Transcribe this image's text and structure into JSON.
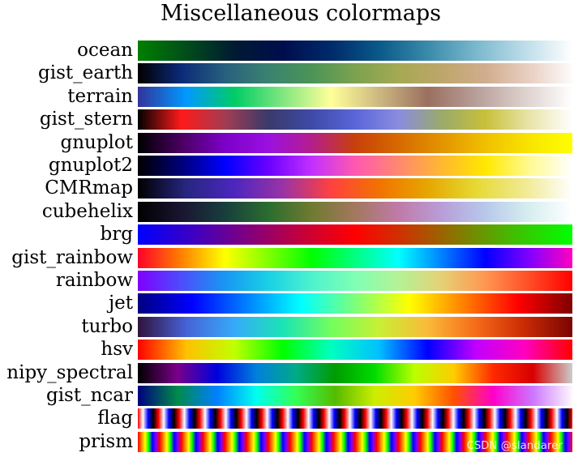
{
  "chart_data": {
    "type": "heatmap",
    "title": "Miscellaneous colormaps",
    "colormaps": [
      {
        "name": "ocean",
        "stops": [
          "#008000",
          "#004d1a",
          "#001a33",
          "#000d4d",
          "#002a6a",
          "#0a5a8a",
          "#3a8aaa",
          "#7ab8cc",
          "#bcdce8",
          "#ffffff"
        ]
      },
      {
        "name": "gist_earth",
        "stops": [
          "#000000",
          "#0b2a78",
          "#27607e",
          "#3a8270",
          "#4b9457",
          "#7ca24f",
          "#a5a953",
          "#bea66a",
          "#d1ad8e",
          "#e8cfc2",
          "#fdfbfb"
        ]
      },
      {
        "name": "terrain",
        "stops": [
          "#333399",
          "#0099ff",
          "#00cc66",
          "#80e680",
          "#ffff99",
          "#ccb880",
          "#9a7060",
          "#b89e98",
          "#dcd0cc",
          "#ffffff"
        ]
      },
      {
        "name": "gist_stern",
        "stops": [
          "#000000",
          "#ff1a1a",
          "#a33c52",
          "#3a3a6a",
          "#3e4aa8",
          "#5a66d8",
          "#8a8ce0",
          "#9aaa6a",
          "#c8c03a",
          "#e8e4a8",
          "#ffffff"
        ]
      },
      {
        "name": "gnuplot",
        "stops": [
          "#000000",
          "#4a0060",
          "#7c00c8",
          "#9a10e0",
          "#b41e8c",
          "#c8400a",
          "#d66a00",
          "#e39400",
          "#f0c000",
          "#f8e400",
          "#ffff00"
        ]
      },
      {
        "name": "gnuplot2",
        "stops": [
          "#000000",
          "#00007a",
          "#0000ff",
          "#6a00ff",
          "#c230ff",
          "#ff58b0",
          "#ff8870",
          "#ffb830",
          "#ffe800",
          "#fffa90",
          "#ffffff"
        ]
      },
      {
        "name": "CMRmap",
        "stops": [
          "#000000",
          "#262680",
          "#4d26bf",
          "#9933a6",
          "#ff4040",
          "#f27300",
          "#e6a600",
          "#e6d933",
          "#f0ea90",
          "#ffffff"
        ]
      },
      {
        "name": "cubehelix",
        "stops": [
          "#000000",
          "#1a1530",
          "#173e3d",
          "#2b6d2f",
          "#6f7a30",
          "#a3785e",
          "#c07aa8",
          "#b89ed8",
          "#b8c8ea",
          "#d6eef0",
          "#ffffff"
        ]
      },
      {
        "name": "brg",
        "stops": [
          "#0000ff",
          "#3c00c3",
          "#7f0080",
          "#c3003c",
          "#ff0000",
          "#c33c00",
          "#7f7f00",
          "#3cc300",
          "#00ff00"
        ]
      },
      {
        "name": "gist_rainbow",
        "stops": [
          "#ff0029",
          "#ff8000",
          "#ffff00",
          "#80ff00",
          "#00ff00",
          "#00ff80",
          "#00ffff",
          "#0080ff",
          "#0000ff",
          "#8000ff",
          "#ff00bf"
        ]
      },
      {
        "name": "rainbow",
        "stops": [
          "#8000ff",
          "#4d4dfc",
          "#1996f3",
          "#19d0e5",
          "#4df3ce",
          "#80ffb4",
          "#b4f396",
          "#e6d076",
          "#ff9650",
          "#ff4d27",
          "#ff0000"
        ]
      },
      {
        "name": "jet",
        "stops": [
          "#000080",
          "#0000ff",
          "#0080ff",
          "#00ffff",
          "#7dff7a",
          "#ffff00",
          "#ff8000",
          "#ff0000",
          "#800000"
        ]
      },
      {
        "name": "turbo",
        "stops": [
          "#30123b",
          "#4662d7",
          "#36aaf9",
          "#1ae4b6",
          "#72fe5e",
          "#c8ef34",
          "#faba39",
          "#f66b19",
          "#ca2a04",
          "#7a0403"
        ]
      },
      {
        "name": "hsv",
        "stops": [
          "#ff0000",
          "#ffc000",
          "#c0ff00",
          "#00ff00",
          "#00ffc0",
          "#00c0ff",
          "#0000ff",
          "#c000ff",
          "#ff00c0",
          "#ff0000"
        ]
      },
      {
        "name": "nipy_spectral",
        "stops": [
          "#000000",
          "#7a008a",
          "#0000dd",
          "#0080dd",
          "#00aa88",
          "#009c00",
          "#00dd00",
          "#bbff00",
          "#ffcc00",
          "#ff2800",
          "#d80000",
          "#cccccc"
        ]
      },
      {
        "name": "gist_ncar",
        "stops": [
          "#000080",
          "#008a4a",
          "#0080ff",
          "#00ffee",
          "#33ff55",
          "#55bb00",
          "#ccee00",
          "#ffcc00",
          "#ff5000",
          "#ff00cc",
          "#cc77ff",
          "#fef8fe"
        ]
      },
      {
        "name": "flag",
        "pattern": "flag"
      },
      {
        "name": "prism",
        "pattern": "prism"
      }
    ]
  },
  "watermark": "CSDN @slandarer"
}
